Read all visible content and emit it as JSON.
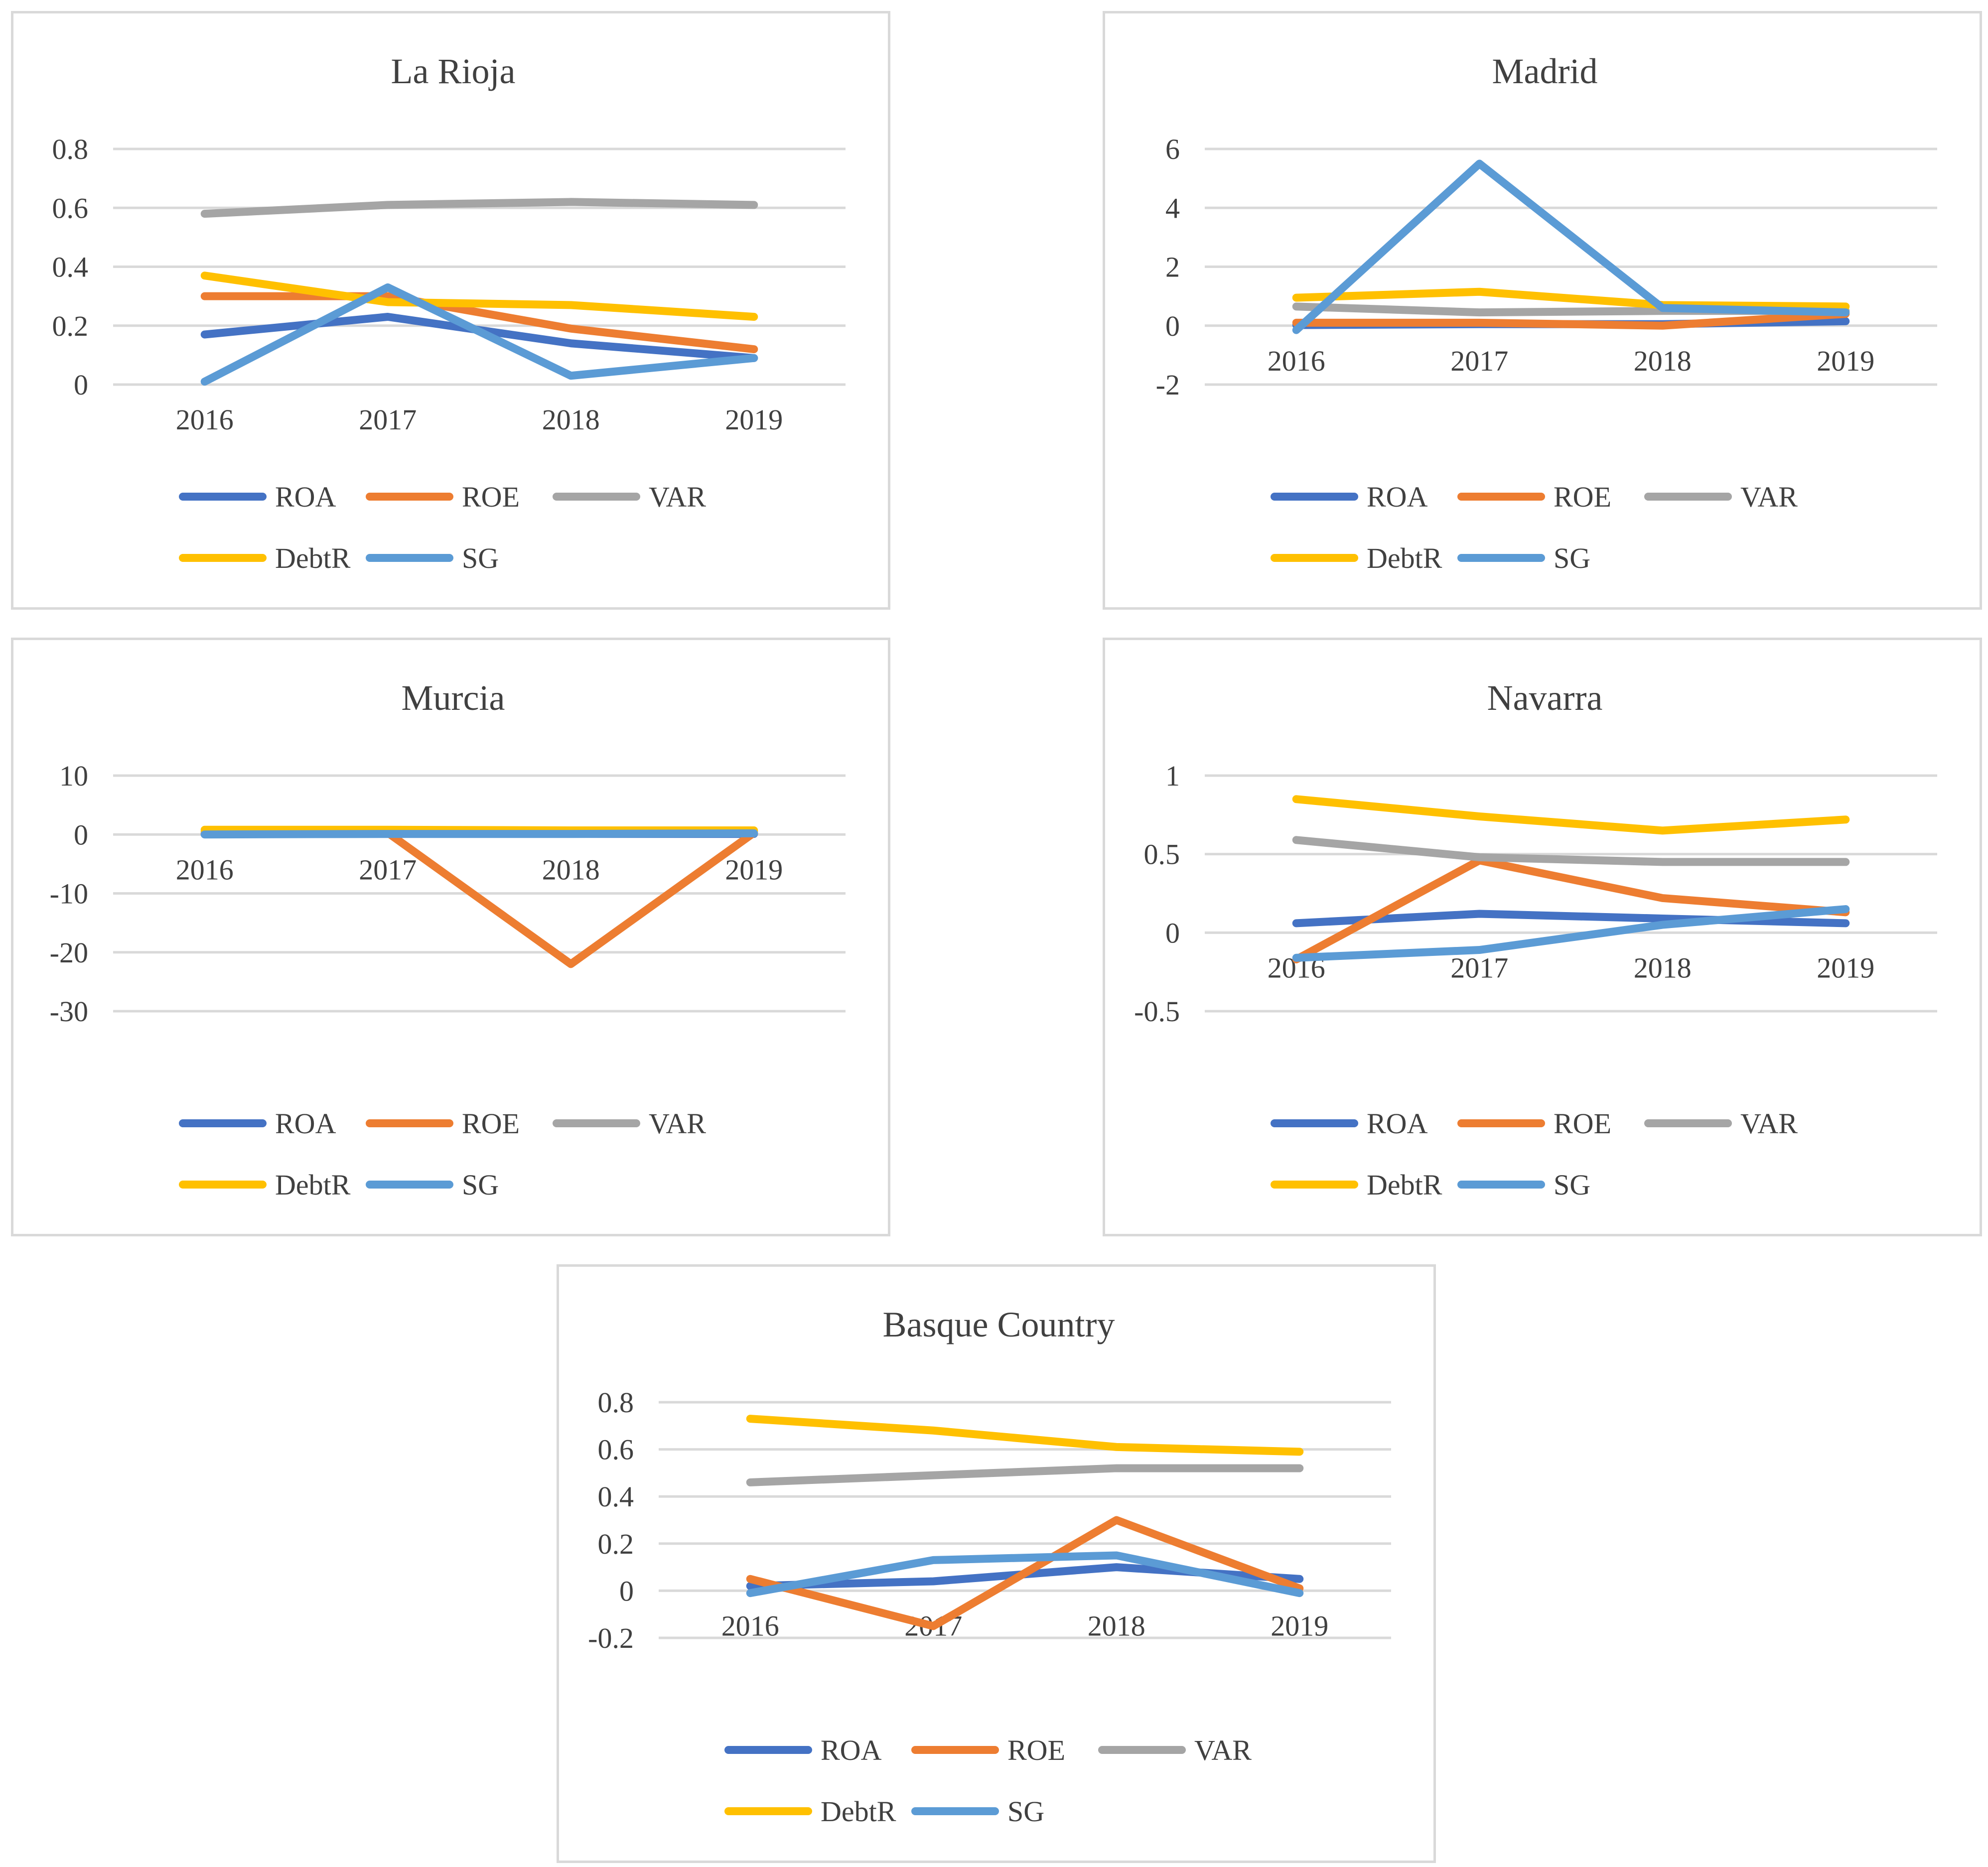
{
  "colors": {
    "ROA": "#4472c4",
    "ROE": "#ed7d31",
    "VAR": "#a5a5a5",
    "DebtR": "#ffc000",
    "SG": "#5b9bd5"
  },
  "chart_data": [
    {
      "type": "line",
      "title": "La Rioja",
      "categories": [
        "2016",
        "2017",
        "2018",
        "2019"
      ],
      "ylim": [
        0,
        0.8
      ],
      "yticks": [
        0,
        0.2,
        0.4,
        0.6,
        0.8
      ],
      "ytick_labels": [
        "0",
        "0.2",
        "0.4",
        "0.6",
        "0.8"
      ],
      "series": [
        {
          "name": "ROA",
          "values": [
            0.17,
            0.23,
            0.14,
            0.09
          ]
        },
        {
          "name": "ROE",
          "values": [
            0.3,
            0.3,
            0.19,
            0.12
          ]
        },
        {
          "name": "VAR",
          "values": [
            0.58,
            0.61,
            0.62,
            0.61
          ]
        },
        {
          "name": "DebtR",
          "values": [
            0.37,
            0.28,
            0.27,
            0.23
          ]
        },
        {
          "name": "SG",
          "values": [
            0.01,
            0.33,
            0.03,
            0.09
          ]
        }
      ],
      "legend": [
        "ROA",
        "ROE",
        "VAR",
        "DebtR",
        "SG"
      ]
    },
    {
      "type": "line",
      "title": "Madrid",
      "categories": [
        "2016",
        "2017",
        "2018",
        "2019"
      ],
      "ylim": [
        -2,
        6
      ],
      "yticks": [
        -2,
        0,
        2,
        4,
        6
      ],
      "ytick_labels": [
        "-2",
        "0",
        "2",
        "4",
        "6"
      ],
      "series": [
        {
          "name": "ROA",
          "values": [
            0.02,
            0.05,
            0.05,
            0.15
          ]
        },
        {
          "name": "ROE",
          "values": [
            0.1,
            0.1,
            0.0,
            0.4
          ]
        },
        {
          "name": "VAR",
          "values": [
            0.65,
            0.45,
            0.5,
            0.5
          ]
        },
        {
          "name": "DebtR",
          "values": [
            0.95,
            1.15,
            0.7,
            0.65
          ]
        },
        {
          "name": "SG",
          "values": [
            -0.15,
            5.5,
            0.6,
            0.45
          ]
        }
      ],
      "legend": [
        "ROA",
        "ROE",
        "VAR",
        "DebtR",
        "SG"
      ]
    },
    {
      "type": "line",
      "title": "Murcia",
      "categories": [
        "2016",
        "2017",
        "2018",
        "2019"
      ],
      "ylim": [
        -30,
        10
      ],
      "yticks": [
        -30,
        -20,
        -10,
        0,
        10
      ],
      "ytick_labels": [
        "-30",
        "-20",
        "-10",
        "0",
        "10"
      ],
      "series": [
        {
          "name": "ROA",
          "values": [
            0.05,
            0.1,
            0.1,
            0.1
          ]
        },
        {
          "name": "ROE",
          "values": [
            0.2,
            0.3,
            -22,
            0.3
          ]
        },
        {
          "name": "VAR",
          "values": [
            0.5,
            0.5,
            0.5,
            0.5
          ]
        },
        {
          "name": "DebtR",
          "values": [
            0.8,
            0.8,
            0.7,
            0.7
          ]
        },
        {
          "name": "SG",
          "values": [
            0.0,
            0.1,
            0.1,
            0.2
          ]
        }
      ],
      "legend": [
        "ROA",
        "ROE",
        "VAR",
        "DebtR",
        "SG"
      ]
    },
    {
      "type": "line",
      "title": "Navarra",
      "categories": [
        "2016",
        "2017",
        "2018",
        "2019"
      ],
      "ylim": [
        -0.5,
        1
      ],
      "yticks": [
        -0.5,
        0,
        0.5,
        1
      ],
      "ytick_labels": [
        "-0.5",
        "0",
        "0.5",
        "1"
      ],
      "series": [
        {
          "name": "ROA",
          "values": [
            0.06,
            0.12,
            0.09,
            0.06
          ]
        },
        {
          "name": "ROE",
          "values": [
            -0.17,
            0.46,
            0.22,
            0.13
          ]
        },
        {
          "name": "VAR",
          "values": [
            0.59,
            0.48,
            0.45,
            0.45
          ]
        },
        {
          "name": "DebtR",
          "values": [
            0.85,
            0.74,
            0.65,
            0.72
          ]
        },
        {
          "name": "SG",
          "values": [
            -0.16,
            -0.11,
            0.05,
            0.15
          ]
        }
      ],
      "legend": [
        "ROA",
        "ROE",
        "VAR",
        "DebtR",
        "SG"
      ]
    },
    {
      "type": "line",
      "title": "Basque Country",
      "categories": [
        "2016",
        "2017",
        "2018",
        "2019"
      ],
      "ylim": [
        -0.2,
        0.8
      ],
      "yticks": [
        -0.2,
        0,
        0.2,
        0.4,
        0.6,
        0.8
      ],
      "ytick_labels": [
        "-0.2",
        "0",
        "0.2",
        "0.4",
        "0.6",
        "0.8"
      ],
      "series": [
        {
          "name": "ROA",
          "values": [
            0.02,
            0.04,
            0.1,
            0.05
          ]
        },
        {
          "name": "ROE",
          "values": [
            0.05,
            -0.15,
            0.3,
            0.01
          ]
        },
        {
          "name": "VAR",
          "values": [
            0.46,
            0.49,
            0.52,
            0.52
          ]
        },
        {
          "name": "DebtR",
          "values": [
            0.73,
            0.68,
            0.61,
            0.59
          ]
        },
        {
          "name": "SG",
          "values": [
            -0.01,
            0.13,
            0.15,
            -0.01
          ]
        }
      ],
      "legend": [
        "ROA",
        "ROE",
        "VAR",
        "DebtR",
        "SG"
      ]
    }
  ]
}
